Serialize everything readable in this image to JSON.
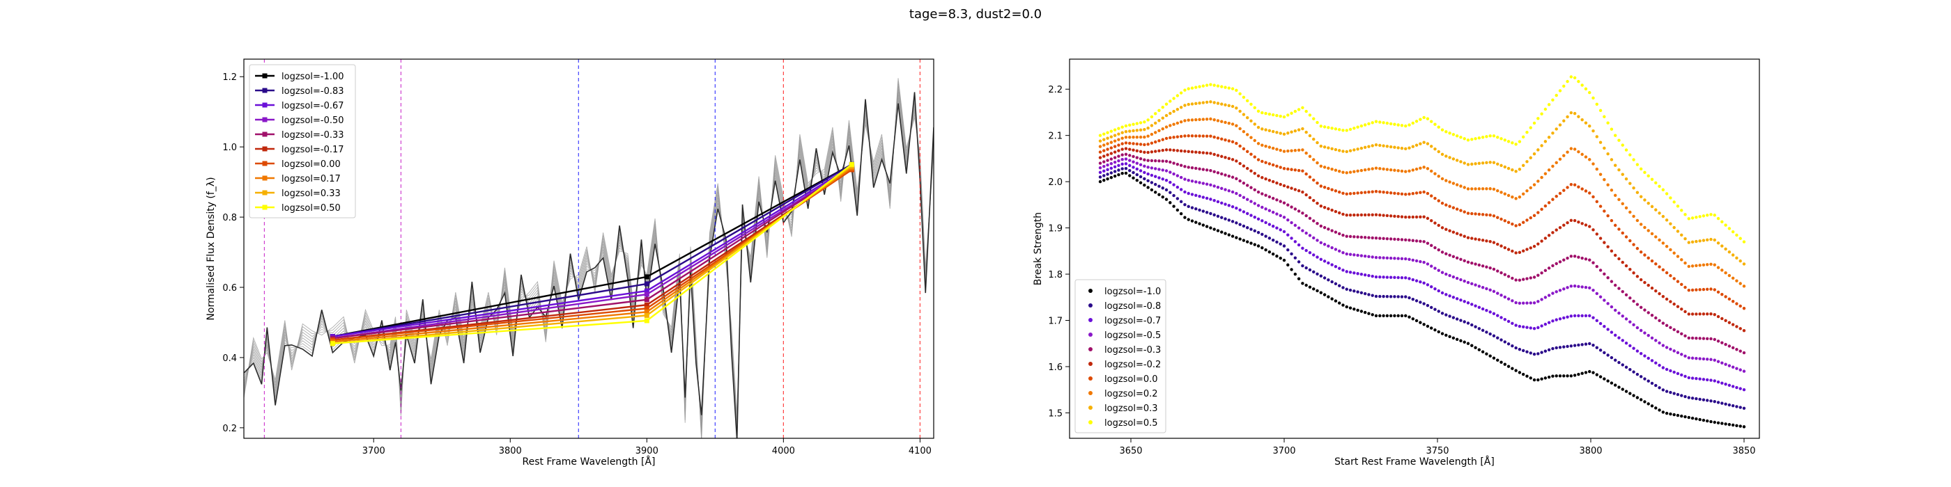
{
  "figure": {
    "suptitle": "tage=8.3, dust2=0.0"
  },
  "chart_data": [
    {
      "type": "line",
      "title": "",
      "xlabel": "Rest Frame Wavelength [Å]",
      "ylabel": "Normalised Flux Density (f_λ)",
      "xlim": [
        3605,
        4110
      ],
      "ylim": [
        0.17,
        1.25
      ],
      "xticks": [
        3700,
        3800,
        3900,
        4000,
        4100
      ],
      "yticks": [
        0.2,
        0.4,
        0.6,
        0.8,
        1.0,
        1.2
      ],
      "grid": false,
      "legend_position": "top-left",
      "vertical_lines": [
        {
          "x": 3620,
          "color": "#bf00bf",
          "style": "dashed"
        },
        {
          "x": 3720,
          "color": "#bf00bf",
          "style": "dashed"
        },
        {
          "x": 3850,
          "color": "#0000ff",
          "style": "dashed"
        },
        {
          "x": 3950,
          "color": "#0000ff",
          "style": "dashed"
        },
        {
          "x": 4000,
          "color": "#ff0000",
          "style": "dashed"
        },
        {
          "x": 4100,
          "color": "#ff0000",
          "style": "dashed"
        }
      ],
      "spectrum": {
        "x": [
          3605,
          3612,
          3618,
          3622,
          3628,
          3635,
          3640,
          3648,
          3655,
          3662,
          3670,
          3678,
          3686,
          3694,
          3700,
          3706,
          3712,
          3716,
          3720,
          3724,
          3730,
          3736,
          3742,
          3748,
          3754,
          3760,
          3766,
          3772,
          3778,
          3784,
          3790,
          3796,
          3802,
          3808,
          3814,
          3820,
          3826,
          3832,
          3838,
          3844,
          3850,
          3856,
          3862,
          3868,
          3874,
          3880,
          3886,
          3890,
          3896,
          3900,
          3906,
          3912,
          3918,
          3924,
          3928,
          3932,
          3936,
          3940,
          3946,
          3952,
          3958,
          3962,
          3966,
          3970,
          3976,
          3982,
          3988,
          3994,
          4000,
          4006,
          4012,
          4018,
          4024,
          4030,
          4036,
          4042,
          4048,
          4054,
          4060,
          4066,
          4072,
          4078,
          4084,
          4090,
          4096,
          4100,
          4104,
          4110
        ],
        "y": [
          0.32,
          0.42,
          0.36,
          0.45,
          0.3,
          0.47,
          0.4,
          0.46,
          0.44,
          0.5,
          0.45,
          0.48,
          0.42,
          0.5,
          0.44,
          0.47,
          0.4,
          0.48,
          0.27,
          0.5,
          0.42,
          0.53,
          0.36,
          0.5,
          0.47,
          0.55,
          0.42,
          0.58,
          0.45,
          0.55,
          0.5,
          0.62,
          0.44,
          0.6,
          0.55,
          0.58,
          0.48,
          0.64,
          0.52,
          0.66,
          0.6,
          0.68,
          0.62,
          0.72,
          0.6,
          0.74,
          0.66,
          0.52,
          0.7,
          0.6,
          0.76,
          0.56,
          0.45,
          0.66,
          0.25,
          0.68,
          0.42,
          0.2,
          0.72,
          0.86,
          0.7,
          0.45,
          0.2,
          0.8,
          0.65,
          0.88,
          0.72,
          0.94,
          0.82,
          0.78,
          1.0,
          0.86,
          0.96,
          0.9,
          1.02,
          0.88,
          1.04,
          0.84,
          1.1,
          0.92,
          1.0,
          0.86,
          1.16,
          0.96,
          1.12,
          0.94,
          0.62,
          1.02
        ]
      },
      "series": [
        {
          "name": "logzsol=-1.00",
          "color": "#000000",
          "x": [
            3670,
            3900,
            4050
          ],
          "y": [
            0.46,
            0.63,
            0.95
          ]
        },
        {
          "name": "logzsol=-0.83",
          "color": "#2a0a8a",
          "x": [
            3670,
            3900,
            4050
          ],
          "y": [
            0.46,
            0.61,
            0.95
          ]
        },
        {
          "name": "logzsol=-0.67",
          "color": "#6a10d8",
          "x": [
            3670,
            3900,
            4050
          ],
          "y": [
            0.46,
            0.59,
            0.945
          ]
        },
        {
          "name": "logzsol=-0.50",
          "color": "#8a18c8",
          "x": [
            3670,
            3900,
            4050
          ],
          "y": [
            0.455,
            0.58,
            0.94
          ]
        },
        {
          "name": "logzsol=-0.33",
          "color": "#a0106a",
          "x": [
            3670,
            3900,
            4050
          ],
          "y": [
            0.455,
            0.565,
            0.94
          ]
        },
        {
          "name": "logzsol=-0.17",
          "color": "#c0280c",
          "x": [
            3670,
            3900,
            4050
          ],
          "y": [
            0.45,
            0.55,
            0.935
          ]
        },
        {
          "name": "logzsol=0.00",
          "color": "#dd4a00",
          "x": [
            3670,
            3900,
            4050
          ],
          "y": [
            0.45,
            0.54,
            0.935
          ]
        },
        {
          "name": "logzsol=0.17",
          "color": "#f07800",
          "x": [
            3670,
            3900,
            4050
          ],
          "y": [
            0.445,
            0.53,
            0.94
          ]
        },
        {
          "name": "logzsol=0.33",
          "color": "#f6b000",
          "x": [
            3670,
            3900,
            4050
          ],
          "y": [
            0.44,
            0.52,
            0.945
          ]
        },
        {
          "name": "logzsol=0.50",
          "color": "#ffff00",
          "x": [
            3670,
            3900,
            4050
          ],
          "y": [
            0.44,
            0.505,
            0.95
          ]
        }
      ]
    },
    {
      "type": "scatter",
      "title": "",
      "xlabel": "Start Rest Frame Wavelength [Å]",
      "ylabel": "Break Strength",
      "xlim": [
        3630,
        3855
      ],
      "ylim": [
        1.445,
        2.265
      ],
      "xticks": [
        3650,
        3700,
        3750,
        3800,
        3850
      ],
      "yticks": [
        1.5,
        1.6,
        1.7,
        1.8,
        1.9,
        2.0,
        2.1,
        2.2
      ],
      "grid": false,
      "legend_position": "bottom-left",
      "x_range": [
        3640,
        3850
      ],
      "curve_shape": {
        "x": [
          3640,
          3648,
          3655,
          3662,
          3668,
          3676,
          3684,
          3692,
          3700,
          3706,
          3712,
          3720,
          3730,
          3740,
          3746,
          3752,
          3760,
          3768,
          3776,
          3782,
          3788,
          3794,
          3800,
          3808,
          3816,
          3824,
          3832,
          3840,
          3850
        ],
        "base": [
          2.0,
          2.02,
          1.99,
          1.96,
          1.92,
          1.9,
          1.88,
          1.86,
          1.83,
          1.78,
          1.76,
          1.73,
          1.71,
          1.71,
          1.69,
          1.67,
          1.65,
          1.62,
          1.59,
          1.57,
          1.58,
          1.58,
          1.59,
          1.56,
          1.53,
          1.5,
          1.49,
          1.48,
          1.47
        ],
        "top": [
          2.1,
          2.12,
          2.13,
          2.17,
          2.2,
          2.21,
          2.2,
          2.15,
          2.14,
          2.16,
          2.12,
          2.11,
          2.13,
          2.12,
          2.14,
          2.11,
          2.09,
          2.1,
          2.08,
          2.13,
          2.18,
          2.23,
          2.19,
          2.1,
          2.03,
          1.98,
          1.92,
          1.93,
          1.87
        ]
      },
      "series": [
        {
          "name": "logzsol=-1.0",
          "color": "#000000",
          "fraction": 0.0
        },
        {
          "name": "logzsol=-0.8",
          "color": "#2a0a8a",
          "fraction": 0.1
        },
        {
          "name": "logzsol=-0.7",
          "color": "#6a10d8",
          "fraction": 0.2
        },
        {
          "name": "logzsol=-0.5",
          "color": "#8a18c8",
          "fraction": 0.3
        },
        {
          "name": "logzsol=-0.3",
          "color": "#a0106a",
          "fraction": 0.4
        },
        {
          "name": "logzsol=-0.2",
          "color": "#c0280c",
          "fraction": 0.52
        },
        {
          "name": "logzsol=0.0",
          "color": "#dd4a00",
          "fraction": 0.64
        },
        {
          "name": "logzsol=0.2",
          "color": "#f07800",
          "fraction": 0.76
        },
        {
          "name": "logzsol=0.3",
          "color": "#f6b000",
          "fraction": 0.88
        },
        {
          "name": "logzsol=0.5",
          "color": "#ffff00",
          "fraction": 1.0
        }
      ]
    }
  ]
}
